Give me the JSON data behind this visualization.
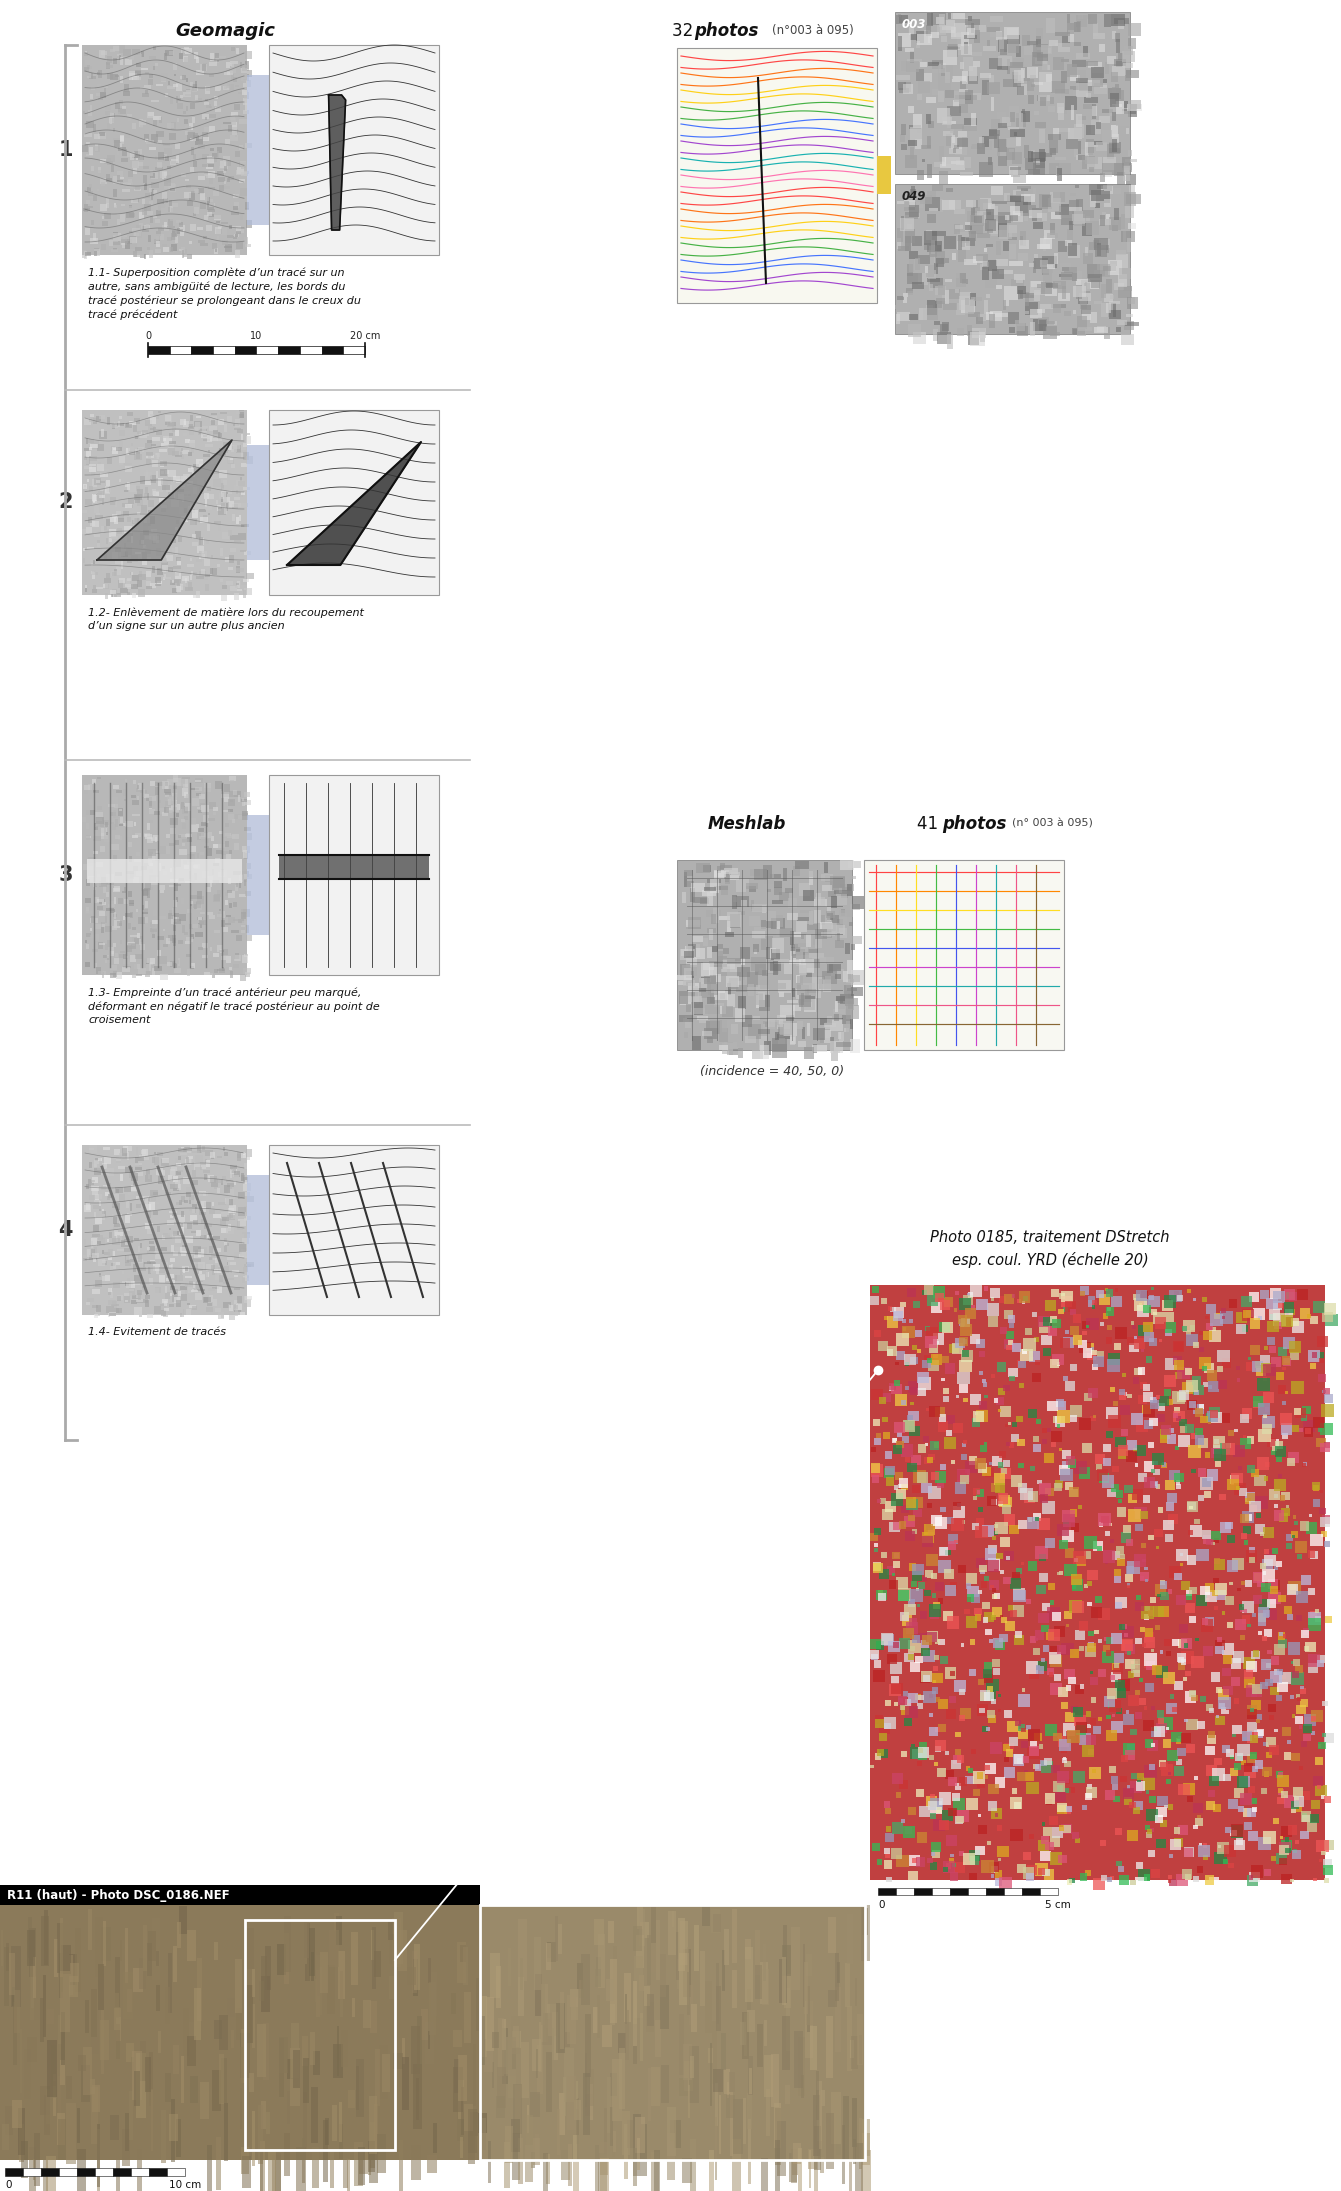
{
  "figure_width": 13.41,
  "figure_height": 21.91,
  "bg_color": "#ffffff",
  "title_geomagic": "Geomagic",
  "title_meshlab": "Meshlab",
  "incidence_text": "(incidence = 40, 50, 0)",
  "label_1": "1",
  "label_2": "2",
  "label_3": "3",
  "label_4": "4",
  "caption_1": "1.1- Superposition complète d’un tracé sur un\nautre, sans ambigüité de lecture, les bords du\ntracé postérieur se prolongeant dans le creux du\ntracé précédent",
  "caption_2": "1.2- Enlèvement de matière lors du recoupement\nd’un signe sur un autre plus ancien",
  "caption_3": "1.3- Empreinte d’un tracé antérieur peu marqué,\ndéformant en négatif le tracé postérieur au point de\ncroisement",
  "caption_4": "1.4- Evitement de tracés",
  "photo_caption_line1": "Photo 0185, traitement DStretch",
  "photo_caption_line2": "esp. coul. YRD (échelle 20)",
  "bottom_label": "R11 (haut) - Photo DSC_0186.NEF",
  "scale_label_0": "0",
  "scale_label_10": "10",
  "scale_label_20cm": "20 cm",
  "photos_32_num": "32",
  "photos_32_label": "photos",
  "photos_32_sub": "(n°003 à 095)",
  "photos_41_num": "41",
  "photos_41_label": "photos",
  "photos_41_sub": "(n° 003 à 095)",
  "photo_003": "003",
  "photo_049": "049",
  "scale_bottom_left_0": "0",
  "scale_bottom_left_10cm": "10 cm",
  "scale_bottom_right_0": "0",
  "scale_bottom_right_5cm": "5 cm",
  "bracket_color": "#aaaaaa",
  "divider_color": "#bbbbbb",
  "yellow_connector": "#e8c840",
  "blue_connector": "#b0bcd8",
  "img_bg": "#c0c0c0",
  "ld_bg": "#f2f2f2",
  "ld_border": "#999999"
}
